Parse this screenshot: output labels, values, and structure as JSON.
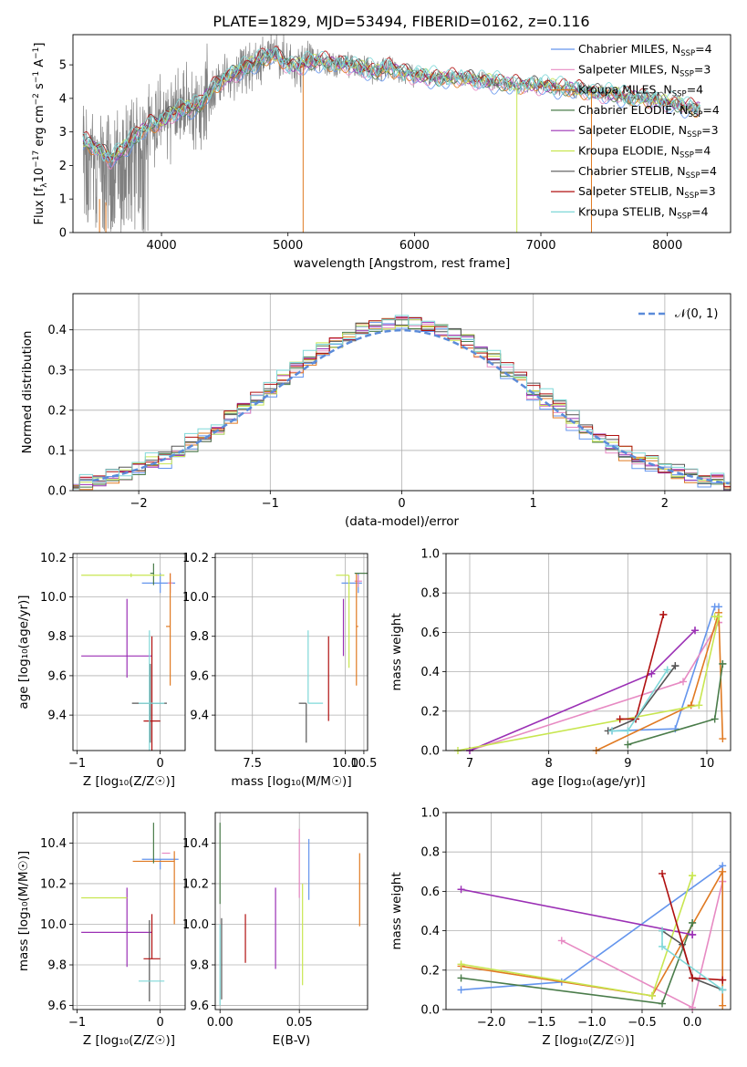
{
  "figure": {
    "title": "PLATE=1829, MJD=53494, FIBERID=0162, z=0.116"
  },
  "series_legend": [
    {
      "label": "Chabrier MILES, N",
      "sub": "SSP",
      "tail": "=4",
      "color": "#6495ed"
    },
    {
      "label": "Salpeter MILES, N",
      "sub": "SSP",
      "tail": "=3",
      "color": "#e78ac3"
    },
    {
      "label": "Kroupa MILES, N",
      "sub": "SSP",
      "tail": "=4",
      "color": "#e07a22"
    },
    {
      "label": "Chabrier ELODIE, N",
      "sub": "SSP",
      "tail": "=4",
      "color": "#4a7c4a"
    },
    {
      "label": "Salpeter ELODIE, N",
      "sub": "SSP",
      "tail": "=3",
      "color": "#9b30b5"
    },
    {
      "label": "Kroupa ELODIE, N",
      "sub": "SSP",
      "tail": "=4",
      "color": "#c8e650"
    },
    {
      "label": "Chabrier STELIB, N",
      "sub": "SSP",
      "tail": "=4",
      "color": "#555555"
    },
    {
      "label": "Salpeter STELIB, N",
      "sub": "SSP",
      "tail": "=3",
      "color": "#b01010"
    },
    {
      "label": "Kroupa STELIB, N",
      "sub": "SSP",
      "tail": "=4",
      "color": "#7fd8d8"
    }
  ],
  "chart_data": [
    {
      "id": "spectrum",
      "type": "line",
      "xlabel": "wavelength [Angstrom, rest frame]",
      "ylabel_parts": {
        "pre": "Flux [f",
        "sub": "λ",
        "mid": "10",
        "sup1": "−17",
        "post1": " erg cm",
        "sup2": "−2",
        "post2": " s",
        "sup3": "−1",
        "post3": " A",
        "sup4": "−1",
        "end": "]"
      },
      "xlim": [
        3300,
        8500
      ],
      "ylim": [
        0,
        5.9
      ],
      "xticks": [
        4000,
        5000,
        6000,
        7000,
        8000
      ],
      "yticks": [
        0,
        1,
        2,
        3,
        4,
        5
      ],
      "grid": false,
      "legend": "top-right",
      "model_anchors_x": [
        3400,
        3500,
        3600,
        3700,
        3800,
        3900,
        4000,
        4100,
        4200,
        4300,
        4400,
        4500,
        4600,
        4700,
        4800,
        4900,
        5000,
        5100,
        5200,
        5300,
        5400,
        5500,
        5600,
        5700,
        5800,
        5900,
        6000,
        6200,
        6400,
        6600,
        6800,
        7000,
        7200,
        7400,
        7600,
        7800,
        8000,
        8200
      ],
      "model_anchors_y": [
        2.7,
        2.5,
        2.2,
        2.5,
        2.9,
        3.2,
        3.3,
        3.6,
        3.7,
        3.8,
        4.3,
        4.6,
        4.8,
        5.0,
        5.2,
        5.3,
        5.0,
        5.0,
        5.1,
        5.1,
        5.0,
        5.0,
        4.9,
        4.8,
        4.9,
        4.8,
        4.7,
        4.6,
        4.6,
        4.5,
        4.4,
        4.4,
        4.3,
        4.2,
        4.1,
        4.0,
        3.9,
        3.7
      ]
    },
    {
      "id": "residuals",
      "type": "line",
      "xlabel": "(data-model)/error",
      "ylabel": "Normed distribution",
      "xlim": [
        -2.5,
        2.5
      ],
      "ylim": [
        0,
        0.49
      ],
      "xticks": [
        -2,
        -1,
        0,
        1,
        2
      ],
      "xtick_labels": [
        "−2",
        "−1",
        "0",
        "1",
        "2"
      ],
      "yticks": [
        0,
        0.1,
        0.2,
        0.3,
        0.4
      ],
      "ytick_labels": [
        "0.0",
        "0.1",
        "0.2",
        "0.3",
        "0.4"
      ],
      "grid": true,
      "legend": "top-right",
      "normal_label": "𝒩(0, 1)",
      "normal_color": "#5b8bd9"
    },
    {
      "id": "age_vs_Z",
      "type": "scatter",
      "xlabel": "Z [log₁₀(Z/Z☉)]",
      "ylabel": "age  [log₁₀(age/yr)]",
      "xlim": [
        -1.05,
        0.3
      ],
      "ylim": [
        9.22,
        10.22
      ],
      "xticks": [
        -1,
        0
      ],
      "xtick_labels": [
        "−1",
        "0"
      ],
      "yticks": [
        9.4,
        9.6,
        9.8,
        10.0,
        10.2
      ],
      "ytick_labels": [
        "9.4",
        "9.6",
        "9.8",
        "10.0",
        "10.2"
      ],
      "grid": true,
      "points": [
        {
          "x": 0.0,
          "xerr": [
            0.22,
            0.18
          ],
          "y": 10.07,
          "yerr": [
            0.05,
            0.05
          ],
          "s": 0
        },
        {
          "x": 0.12,
          "xerr": [
            0.03,
            0.03
          ],
          "y": 10.07,
          "yerr": [
            0.05,
            0.05
          ],
          "s": 1
        },
        {
          "x": 0.12,
          "xerr": [
            0.05,
            0.0
          ],
          "y": 9.85,
          "yerr": [
            0.3,
            0.27
          ],
          "s": 2
        },
        {
          "x": -0.08,
          "xerr": [
            0.04,
            0.0
          ],
          "y": 10.12,
          "yerr": [
            0.06,
            0.05
          ],
          "s": 3
        },
        {
          "x": -0.4,
          "xerr": [
            0.55,
            0.3
          ],
          "y": 9.7,
          "yerr": [
            0.11,
            0.29
          ],
          "s": 4
        },
        {
          "x": -0.35,
          "xerr": [
            0.6,
            0.4
          ],
          "y": 10.11,
          "yerr": [
            0.01,
            0.01
          ],
          "s": 5
        },
        {
          "x": -0.12,
          "xerr": [
            0.22,
            0.2
          ],
          "y": 9.46,
          "yerr": [
            0.2,
            0.2
          ],
          "s": 6
        },
        {
          "x": -0.1,
          "xerr": [
            0.1,
            0.1
          ],
          "y": 9.37,
          "yerr": [
            0.15,
            0.43
          ],
          "s": 7
        },
        {
          "x": -0.13,
          "xerr": [
            0.13,
            0.18
          ],
          "y": 9.46,
          "yerr": [
            0.24,
            0.37
          ],
          "s": 8
        }
      ]
    },
    {
      "id": "age_vs_mass",
      "type": "scatter",
      "xlabel": "mass [log₁₀(M/M☉)]",
      "ylabel": "",
      "xlim": [
        6.5,
        10.6
      ],
      "ylim": [
        9.22,
        10.22
      ],
      "xticks": [
        7.5,
        10.0,
        10.5
      ],
      "xtick_labels": [
        "7.5",
        "10.0",
        "10.5"
      ],
      "yticks": [
        9.4,
        9.6,
        9.8,
        10.0,
        10.2
      ],
      "ytick_labels": [
        "9.4",
        "9.6",
        "9.8",
        "10.0",
        "10.2"
      ],
      "grid": true,
      "points": [
        {
          "x": 10.35,
          "xerr": [
            0.45,
            0.1
          ],
          "y": 10.07,
          "yerr": [
            0.05,
            0.05
          ],
          "s": 0
        },
        {
          "x": 10.35,
          "xerr": [
            0.1,
            0.1
          ],
          "y": 10.08,
          "yerr": [
            0.03,
            0.03
          ],
          "s": 1
        },
        {
          "x": 10.3,
          "xerr": [
            0.0,
            0.05
          ],
          "y": 9.85,
          "yerr": [
            0.3,
            0.27
          ],
          "s": 2
        },
        {
          "x": 10.25,
          "xerr": [
            0.0,
            0.45
          ],
          "y": 10.12,
          "yerr": [
            0.0,
            0.0
          ],
          "s": 3
        },
        {
          "x": 9.95,
          "xerr": [
            0.0,
            0.0
          ],
          "y": 9.7,
          "yerr": [
            0.0,
            0.29
          ],
          "s": 4
        },
        {
          "x": 10.1,
          "xerr": [
            0.35,
            0.0
          ],
          "y": 10.11,
          "yerr": [
            0.47,
            0.0
          ],
          "s": 5
        },
        {
          "x": 8.95,
          "xerr": [
            0.2,
            0.0
          ],
          "y": 9.46,
          "yerr": [
            0.2,
            0.0
          ],
          "s": 6
        },
        {
          "x": 9.55,
          "xerr": [
            0.0,
            0.0
          ],
          "y": 9.37,
          "yerr": [
            0.0,
            0.43
          ],
          "s": 7
        },
        {
          "x": 9.0,
          "xerr": [
            0.0,
            0.4
          ],
          "y": 9.46,
          "yerr": [
            0.0,
            0.37
          ],
          "s": 8
        }
      ]
    },
    {
      "id": "weight_vs_age",
      "type": "line",
      "xlabel": "age  [log₁₀(age/yr)]",
      "ylabel": "mass weight",
      "xlim": [
        6.7,
        10.3
      ],
      "ylim": [
        0,
        1.0
      ],
      "xticks": [
        7,
        8,
        9,
        10
      ],
      "yticks": [
        0,
        0.2,
        0.4,
        0.6,
        0.8,
        1.0
      ],
      "ytick_labels": [
        "0.0",
        "0.2",
        "0.4",
        "0.6",
        "0.8",
        "1.0"
      ],
      "grid": true,
      "series": [
        {
          "s": 0,
          "x": [
            8.8,
            9.6,
            10.1,
            10.15
          ],
          "y": [
            0.1,
            0.11,
            0.73,
            0.73
          ]
        },
        {
          "s": 1,
          "x": [
            7.0,
            9.7,
            10.15,
            10.15
          ],
          "y": [
            0.0,
            0.35,
            0.65,
            0.65
          ]
        },
        {
          "s": 2,
          "x": [
            8.6,
            9.8,
            10.15,
            10.2
          ],
          "y": [
            0.0,
            0.23,
            0.7,
            0.06
          ]
        },
        {
          "s": 3,
          "x": [
            9.0,
            10.1,
            10.2,
            10.2
          ],
          "y": [
            0.03,
            0.16,
            0.44,
            0.44
          ]
        },
        {
          "s": 4,
          "x": [
            7.0,
            9.3,
            9.85,
            9.85
          ],
          "y": [
            0.0,
            0.39,
            0.61,
            0.61
          ]
        },
        {
          "s": 5,
          "x": [
            6.85,
            9.9,
            10.15,
            10.1
          ],
          "y": [
            0.0,
            0.23,
            0.68,
            0.68
          ]
        },
        {
          "s": 6,
          "x": [
            8.75,
            9.1,
            9.6,
            9.6
          ],
          "y": [
            0.1,
            0.16,
            0.43,
            0.43
          ]
        },
        {
          "s": 7,
          "x": [
            8.9,
            9.1,
            9.45,
            9.45
          ],
          "y": [
            0.16,
            0.16,
            0.69,
            0.69
          ]
        },
        {
          "s": 8,
          "x": [
            8.8,
            9.0,
            9.5,
            9.5
          ],
          "y": [
            0.1,
            0.1,
            0.41,
            0.41
          ]
        }
      ]
    },
    {
      "id": "mass_vs_Z",
      "type": "scatter",
      "xlabel": "Z [log₁₀(Z/Z☉)]",
      "ylabel": "mass [log₁₀(M/M☉)]",
      "xlim": [
        -1.05,
        0.3
      ],
      "ylim": [
        9.58,
        10.55
      ],
      "xticks": [
        -1,
        0
      ],
      "xtick_labels": [
        "−1",
        "0"
      ],
      "yticks": [
        9.6,
        9.8,
        10.0,
        10.2,
        10.4
      ],
      "ytick_labels": [
        "9.6",
        "9.8",
        "10.0",
        "10.2",
        "10.4"
      ],
      "grid": true,
      "points": [
        {
          "x": 0.0,
          "xerr": [
            0.22,
            0.22
          ],
          "y": 10.32,
          "yerr": [
            0.05,
            0.0
          ],
          "s": 0
        },
        {
          "x": 0.12,
          "xerr": [
            0.1,
            0.0
          ],
          "y": 10.35,
          "yerr": [
            0.0,
            0.0
          ],
          "s": 1
        },
        {
          "x": 0.17,
          "xerr": [
            0.5,
            0.0
          ],
          "y": 10.31,
          "yerr": [
            0.31,
            0.05
          ],
          "s": 2
        },
        {
          "x": -0.08,
          "xerr": [
            0.0,
            0.0
          ],
          "y": 10.3,
          "yerr": [
            0.0,
            0.2
          ],
          "s": 3
        },
        {
          "x": -0.4,
          "xerr": [
            0.55,
            0.3
          ],
          "y": 9.96,
          "yerr": [
            0.17,
            0.22
          ],
          "s": 4
        },
        {
          "x": -0.4,
          "xerr": [
            0.55,
            0.0
          ],
          "y": 10.13,
          "yerr": [
            0.0,
            0.0
          ],
          "s": 5
        },
        {
          "x": -0.13,
          "xerr": [
            0.0,
            0.0
          ],
          "y": 9.82,
          "yerr": [
            0.2,
            0.2
          ],
          "s": 6
        },
        {
          "x": -0.1,
          "xerr": [
            0.1,
            0.1
          ],
          "y": 9.83,
          "yerr": [
            0.0,
            0.22
          ],
          "s": 7
        },
        {
          "x": -0.13,
          "xerr": [
            0.13,
            0.18
          ],
          "y": 9.72,
          "yerr": [
            0.0,
            0.0
          ],
          "s": 8
        }
      ]
    },
    {
      "id": "mass_vs_EBV",
      "type": "scatter",
      "xlabel": "E(B-V)",
      "ylabel": "",
      "xlim": [
        -0.003,
        0.093
      ],
      "ylim": [
        9.58,
        10.55
      ],
      "xticks": [
        0.0,
        0.05
      ],
      "xtick_labels": [
        "0.00",
        "0.05"
      ],
      "yticks": [
        9.6,
        9.8,
        10.0,
        10.2,
        10.4
      ],
      "ytick_labels": [
        "9.6",
        "9.8",
        "10.0",
        "10.2",
        "10.4"
      ],
      "grid": true,
      "points": [
        {
          "x": 0.056,
          "xerr": [
            0,
            0
          ],
          "y": 10.27,
          "yerr": [
            0.15,
            0.15
          ],
          "s": 0
        },
        {
          "x": 0.05,
          "xerr": [
            0,
            0
          ],
          "y": 10.3,
          "yerr": [
            0.17,
            0.17
          ],
          "s": 1
        },
        {
          "x": 0.088,
          "xerr": [
            0,
            0
          ],
          "y": 10.17,
          "yerr": [
            0.18,
            0.18
          ],
          "s": 2
        },
        {
          "x": 0.0,
          "xerr": [
            0,
            0
          ],
          "y": 10.3,
          "yerr": [
            0.2,
            0.2
          ],
          "s": 3
        },
        {
          "x": 0.035,
          "xerr": [
            0,
            0
          ],
          "y": 9.98,
          "yerr": [
            0.2,
            0.2
          ],
          "s": 4
        },
        {
          "x": 0.052,
          "xerr": [
            0,
            0
          ],
          "y": 9.95,
          "yerr": [
            0.25,
            0.25
          ],
          "s": 5
        },
        {
          "x": 0.001,
          "xerr": [
            0,
            0
          ],
          "y": 9.83,
          "yerr": [
            0.2,
            0.2
          ],
          "s": 6
        },
        {
          "x": 0.016,
          "xerr": [
            0,
            0
          ],
          "y": 9.93,
          "yerr": [
            0.12,
            0.12
          ],
          "s": 7
        },
        {
          "x": 0.0,
          "xerr": [
            0,
            0
          ],
          "y": 9.8,
          "yerr": [
            0.2,
            0.2
          ],
          "s": 8
        }
      ]
    },
    {
      "id": "weight_vs_Z",
      "type": "line",
      "xlabel": "Z [log₁₀(Z/Z☉)]",
      "ylabel": "mass weight",
      "xlim": [
        -2.45,
        0.38
      ],
      "ylim": [
        0,
        1.0
      ],
      "xticks": [
        -2.0,
        -1.5,
        -1.0,
        -0.5,
        0.0
      ],
      "xtick_labels": [
        "−2.0",
        "−1.5",
        "−1.0",
        "−0.5",
        "0.0"
      ],
      "yticks": [
        0,
        0.2,
        0.4,
        0.6,
        0.8,
        1.0
      ],
      "ytick_labels": [
        "0.0",
        "0.2",
        "0.4",
        "0.6",
        "0.8",
        "1.0"
      ],
      "grid": true,
      "series": [
        {
          "s": 0,
          "x": [
            -2.3,
            -1.3,
            0.3,
            0.3
          ],
          "y": [
            0.1,
            0.14,
            0.73,
            0.1
          ]
        },
        {
          "s": 1,
          "x": [
            -1.3,
            0.0,
            0.3,
            0.3
          ],
          "y": [
            0.35,
            0.01,
            0.65,
            0.65
          ]
        },
        {
          "s": 2,
          "x": [
            -2.3,
            -0.4,
            0.3,
            0.3
          ],
          "y": [
            0.22,
            0.07,
            0.7,
            0.02
          ]
        },
        {
          "s": 3,
          "x": [
            -2.3,
            -0.3,
            0.0,
            0.0
          ],
          "y": [
            0.16,
            0.03,
            0.44,
            0.44
          ]
        },
        {
          "s": 4,
          "x": [
            -2.3,
            0.0,
            0.0,
            0.0
          ],
          "y": [
            0.61,
            0.38,
            0.38,
            0.38
          ]
        },
        {
          "s": 5,
          "x": [
            -2.3,
            -0.4,
            0.0,
            0.0
          ],
          "y": [
            0.23,
            0.07,
            0.68,
            0.68
          ]
        },
        {
          "s": 6,
          "x": [
            -0.3,
            -0.1,
            0.0,
            0.3
          ],
          "y": [
            0.4,
            0.33,
            0.16,
            0.1
          ]
        },
        {
          "s": 7,
          "x": [
            -0.3,
            0.0,
            0.3,
            0.3
          ],
          "y": [
            0.69,
            0.16,
            0.15,
            0.15
          ]
        },
        {
          "s": 8,
          "x": [
            -0.3,
            -0.3,
            0.3,
            0.3
          ],
          "y": [
            0.4,
            0.32,
            0.1,
            0.1
          ]
        }
      ]
    }
  ]
}
